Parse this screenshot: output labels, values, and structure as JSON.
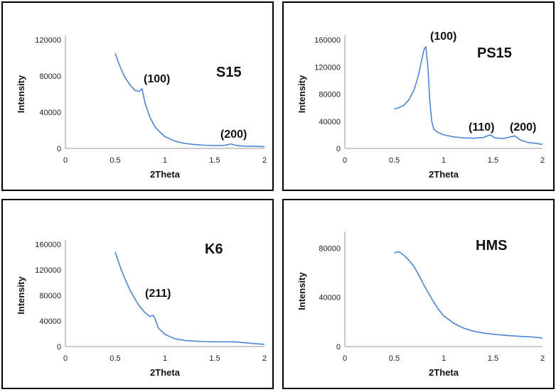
{
  "chart_data": [
    {
      "type": "line",
      "sample": "S15",
      "xlabel": "2Theta",
      "ylabel": "Intensity",
      "xlim": [
        0,
        2
      ],
      "ylim": [
        0,
        120000
      ],
      "x_ticks": [
        "0",
        "0.5",
        "1",
        "1.5",
        "2"
      ],
      "y_ticks": [
        "0",
        "40000",
        "80000",
        "120000"
      ],
      "color": "#4a86d4",
      "peaks": [
        {
          "label": "(100)",
          "x": 0.76,
          "y": 80000
        },
        {
          "label": "(200)",
          "x": 1.66,
          "y": 9000
        }
      ],
      "series": [
        {
          "x": [
            0.5,
            0.55,
            0.6,
            0.65,
            0.7,
            0.74,
            0.77,
            0.8,
            0.85,
            0.9,
            0.95,
            1.0,
            1.1,
            1.2,
            1.3,
            1.4,
            1.5,
            1.6,
            1.66,
            1.72,
            1.8,
            1.9,
            2.0
          ],
          "y": [
            105000,
            90000,
            78000,
            70000,
            64000,
            63000,
            66000,
            50000,
            34000,
            24000,
            18000,
            13000,
            8000,
            5500,
            4200,
            3500,
            3200,
            3400,
            5000,
            3200,
            2500,
            2300,
            2000
          ]
        }
      ]
    },
    {
      "type": "line",
      "sample": "PS15",
      "xlabel": "2Theta",
      "ylabel": "Intensity",
      "xlim": [
        0,
        2
      ],
      "ylim": [
        0,
        160000
      ],
      "x_ticks": [
        "0",
        "0.5",
        "1",
        "1.5",
        "2"
      ],
      "y_ticks": [
        "0",
        "40000",
        "80000",
        "120000",
        "160000"
      ],
      "color": "#4a86d4",
      "peaks": [
        {
          "label": "(100)",
          "x": 0.82,
          "y": 165000
        },
        {
          "label": "(110)",
          "x": 1.47,
          "y": 28000
        },
        {
          "label": "(200)",
          "x": 1.72,
          "y": 28000
        }
      ],
      "series": [
        {
          "x": [
            0.5,
            0.55,
            0.6,
            0.65,
            0.7,
            0.74,
            0.77,
            0.8,
            0.82,
            0.84,
            0.86,
            0.88,
            0.9,
            0.95,
            1.0,
            1.1,
            1.2,
            1.3,
            1.4,
            1.47,
            1.52,
            1.6,
            1.72,
            1.78,
            1.85,
            1.9,
            2.0
          ],
          "y": [
            58000,
            60000,
            64000,
            72000,
            86000,
            105000,
            125000,
            145000,
            150000,
            120000,
            70000,
            40000,
            28000,
            23000,
            20000,
            17000,
            15500,
            15000,
            16000,
            20000,
            15500,
            14500,
            18500,
            12000,
            9000,
            8000,
            6000
          ]
        }
      ]
    },
    {
      "type": "line",
      "sample": "K6",
      "xlabel": "2Theta",
      "ylabel": "Intensity",
      "xlim": [
        0,
        2
      ],
      "ylim": [
        0,
        160000
      ],
      "x_ticks": [
        "0",
        "0.5",
        "1",
        "1.5",
        "2"
      ],
      "y_ticks": [
        "0",
        "40000",
        "80000",
        "120000",
        "160000"
      ],
      "color": "#4a86d4",
      "peaks": [
        {
          "label": "(211)",
          "x": 0.9,
          "y": 62000
        }
      ],
      "series": [
        {
          "x": [
            0.5,
            0.55,
            0.6,
            0.65,
            0.7,
            0.75,
            0.8,
            0.85,
            0.88,
            0.9,
            0.93,
            0.96,
            1.0,
            1.1,
            1.2,
            1.3,
            1.4,
            1.5,
            1.6,
            1.7,
            1.8,
            1.9,
            2.0
          ],
          "y": [
            148000,
            125000,
            105000,
            88000,
            74000,
            62000,
            53000,
            47000,
            49000,
            44000,
            30000,
            25000,
            19000,
            12000,
            9500,
            8500,
            7800,
            7500,
            7200,
            7500,
            6000,
            4500,
            3500
          ]
        }
      ]
    },
    {
      "type": "line",
      "sample": "HMS",
      "xlabel": "2Theta",
      "ylabel": "Intensity",
      "xlim": [
        0,
        2
      ],
      "ylim": [
        0,
        90000
      ],
      "x_ticks": [
        "0",
        "0.5",
        "1",
        "1.5",
        "2"
      ],
      "y_ticks": [
        "0",
        "40000",
        "80000"
      ],
      "color": "#4a86d4",
      "peaks": [],
      "series": [
        {
          "x": [
            0.5,
            0.53,
            0.56,
            0.6,
            0.65,
            0.7,
            0.75,
            0.8,
            0.85,
            0.9,
            0.95,
            1.0,
            1.1,
            1.2,
            1.3,
            1.4,
            1.5,
            1.6,
            1.7,
            1.8,
            1.9,
            2.0
          ],
          "y": [
            76000,
            77000,
            76500,
            74000,
            70000,
            65000,
            58000,
            50000,
            43000,
            36000,
            30000,
            25000,
            19000,
            15000,
            12500,
            11000,
            10000,
            9300,
            8700,
            8200,
            7800,
            7000
          ]
        }
      ]
    }
  ]
}
